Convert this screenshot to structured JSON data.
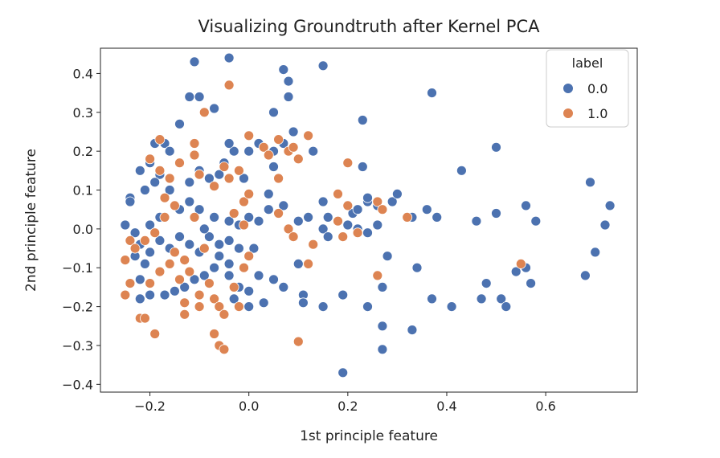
{
  "chart_data": {
    "type": "scatter",
    "title": "Visualizing Groundtruth after Kernel PCA",
    "xlabel": "1st principle feature",
    "ylabel": "2nd principle feature",
    "xlim": [
      -0.3,
      0.785
    ],
    "ylim": [
      -0.42,
      0.465
    ],
    "xticks": [
      -0.2,
      0.0,
      0.2,
      0.4,
      0.6
    ],
    "yticks": [
      -0.4,
      -0.3,
      -0.2,
      -0.1,
      0.0,
      0.1,
      0.2,
      0.3,
      0.4
    ],
    "xtick_labels": [
      "−0.2",
      "0.0",
      "0.2",
      "0.4",
      "0.6"
    ],
    "ytick_labels": [
      "−0.4",
      "−0.3",
      "−0.2",
      "−0.1",
      "0.0",
      "0.1",
      "0.2",
      "0.3",
      "0.4"
    ],
    "grid": false,
    "legend": {
      "title": "label",
      "position": "top-right"
    },
    "series": [
      {
        "name": "0.0",
        "color": "#4c72b0",
        "points": [
          [
            -0.11,
            0.43
          ],
          [
            -0.04,
            0.44
          ],
          [
            -0.1,
            0.34
          ],
          [
            -0.12,
            0.34
          ],
          [
            -0.07,
            0.31
          ],
          [
            -0.14,
            0.27
          ],
          [
            -0.09,
            0.3
          ],
          [
            -0.19,
            0.22
          ],
          [
            -0.17,
            0.22
          ],
          [
            -0.16,
            0.2
          ],
          [
            -0.2,
            0.17
          ],
          [
            -0.22,
            0.15
          ],
          [
            -0.18,
            0.14
          ],
          [
            -0.19,
            0.12
          ],
          [
            -0.21,
            0.1
          ],
          [
            -0.24,
            0.08
          ],
          [
            -0.24,
            0.07
          ],
          [
            -0.16,
            0.1
          ],
          [
            -0.12,
            0.12
          ],
          [
            -0.1,
            0.15
          ],
          [
            -0.05,
            0.17
          ],
          [
            -0.03,
            0.2
          ],
          [
            -0.04,
            0.22
          ],
          [
            -0.06,
            0.14
          ],
          [
            -0.08,
            0.13
          ],
          [
            -0.14,
            0.05
          ],
          [
            -0.12,
            0.07
          ],
          [
            -0.1,
            0.05
          ],
          [
            -0.18,
            0.03
          ],
          [
            -0.2,
            0.01
          ],
          [
            -0.25,
            0.01
          ],
          [
            -0.23,
            -0.01
          ],
          [
            -0.22,
            -0.04
          ],
          [
            -0.2,
            -0.06
          ],
          [
            -0.18,
            -0.03
          ],
          [
            -0.16,
            -0.05
          ],
          [
            -0.14,
            -0.02
          ],
          [
            -0.12,
            -0.04
          ],
          [
            -0.1,
            -0.06
          ],
          [
            -0.08,
            -0.02
          ],
          [
            -0.06,
            -0.04
          ],
          [
            -0.04,
            -0.03
          ],
          [
            -0.02,
            -0.05
          ],
          [
            -0.02,
            0.01
          ],
          [
            -0.04,
            0.02
          ],
          [
            -0.07,
            0.03
          ],
          [
            -0.09,
            0.0
          ],
          [
            -0.06,
            -0.07
          ],
          [
            -0.04,
            -0.09
          ],
          [
            -0.07,
            -0.1
          ],
          [
            -0.09,
            -0.12
          ],
          [
            -0.11,
            -0.13
          ],
          [
            -0.13,
            -0.15
          ],
          [
            -0.15,
            -0.16
          ],
          [
            -0.17,
            -0.17
          ],
          [
            -0.2,
            -0.17
          ],
          [
            -0.22,
            -0.18
          ],
          [
            -0.22,
            -0.13
          ],
          [
            -0.21,
            -0.09
          ],
          [
            -0.23,
            -0.07
          ],
          [
            -0.04,
            -0.12
          ],
          [
            -0.02,
            -0.15
          ],
          [
            -0.03,
            -0.18
          ],
          [
            0.0,
            -0.16
          ],
          [
            0.02,
            -0.12
          ],
          [
            0.05,
            -0.13
          ],
          [
            0.07,
            -0.15
          ],
          [
            0.03,
            -0.19
          ],
          [
            0.0,
            -0.2
          ],
          [
            0.01,
            -0.05
          ],
          [
            0.02,
            0.02
          ],
          [
            0.04,
            0.05
          ],
          [
            0.0,
            0.03
          ],
          [
            -0.01,
            0.13
          ],
          [
            0.0,
            0.2
          ],
          [
            0.02,
            0.22
          ],
          [
            0.05,
            0.2
          ],
          [
            0.07,
            0.22
          ],
          [
            0.05,
            0.16
          ],
          [
            0.04,
            0.09
          ],
          [
            0.07,
            0.06
          ],
          [
            0.05,
            0.3
          ],
          [
            0.07,
            0.41
          ],
          [
            0.08,
            0.38
          ],
          [
            0.08,
            0.34
          ],
          [
            0.09,
            0.25
          ],
          [
            0.13,
            0.2
          ],
          [
            0.15,
            0.42
          ],
          [
            0.1,
            0.02
          ],
          [
            0.12,
            0.03
          ],
          [
            0.15,
            0.07
          ],
          [
            0.16,
            0.03
          ],
          [
            0.15,
            0.0
          ],
          [
            0.16,
            -0.02
          ],
          [
            0.1,
            -0.09
          ],
          [
            0.11,
            -0.17
          ],
          [
            0.11,
            -0.19
          ],
          [
            0.15,
            -0.2
          ],
          [
            0.19,
            -0.37
          ],
          [
            0.19,
            -0.17
          ],
          [
            0.2,
            0.01
          ],
          [
            0.21,
            0.04
          ],
          [
            0.22,
            0.05
          ],
          [
            0.22,
            0.0
          ],
          [
            0.23,
            0.28
          ],
          [
            0.23,
            0.16
          ],
          [
            0.24,
            0.07
          ],
          [
            0.24,
            0.08
          ],
          [
            0.26,
            0.06
          ],
          [
            0.24,
            -0.01
          ],
          [
            0.26,
            0.01
          ],
          [
            0.24,
            -0.2
          ],
          [
            0.27,
            -0.25
          ],
          [
            0.27,
            -0.31
          ],
          [
            0.27,
            -0.15
          ],
          [
            0.28,
            -0.07
          ],
          [
            0.29,
            0.07
          ],
          [
            0.3,
            0.09
          ],
          [
            0.33,
            0.03
          ],
          [
            0.33,
            -0.26
          ],
          [
            0.34,
            -0.1
          ],
          [
            0.36,
            0.05
          ],
          [
            0.37,
            0.35
          ],
          [
            0.38,
            0.03
          ],
          [
            0.37,
            -0.18
          ],
          [
            0.41,
            -0.2
          ],
          [
            0.43,
            0.15
          ],
          [
            0.46,
            0.02
          ],
          [
            0.47,
            -0.18
          ],
          [
            0.48,
            -0.14
          ],
          [
            0.5,
            0.04
          ],
          [
            0.5,
            0.21
          ],
          [
            0.51,
            -0.18
          ],
          [
            0.52,
            -0.2
          ],
          [
            0.54,
            -0.11
          ],
          [
            0.56,
            0.06
          ],
          [
            0.56,
            -0.1
          ],
          [
            0.57,
            -0.14
          ],
          [
            0.58,
            0.02
          ],
          [
            0.68,
            -0.12
          ],
          [
            0.69,
            0.12
          ],
          [
            0.7,
            -0.06
          ],
          [
            0.72,
            0.01
          ],
          [
            0.73,
            0.06
          ]
        ]
      },
      {
        "name": "1.0",
        "color": "#dd8452",
        "points": [
          [
            -0.04,
            0.37
          ],
          [
            -0.09,
            0.3
          ],
          [
            -0.18,
            0.23
          ],
          [
            -0.2,
            0.18
          ],
          [
            -0.18,
            0.15
          ],
          [
            -0.16,
            0.13
          ],
          [
            -0.14,
            0.17
          ],
          [
            -0.11,
            0.22
          ],
          [
            -0.11,
            0.19
          ],
          [
            -0.1,
            0.14
          ],
          [
            -0.07,
            0.11
          ],
          [
            -0.05,
            0.16
          ],
          [
            -0.04,
            0.13
          ],
          [
            -0.02,
            0.15
          ],
          [
            -0.17,
            0.08
          ],
          [
            -0.15,
            0.06
          ],
          [
            -0.17,
            0.03
          ],
          [
            -0.19,
            -0.01
          ],
          [
            -0.21,
            -0.03
          ],
          [
            -0.24,
            -0.03
          ],
          [
            -0.23,
            -0.05
          ],
          [
            -0.25,
            -0.08
          ],
          [
            -0.24,
            -0.14
          ],
          [
            -0.25,
            -0.17
          ],
          [
            -0.22,
            -0.23
          ],
          [
            -0.21,
            -0.23
          ],
          [
            -0.19,
            -0.27
          ],
          [
            -0.2,
            -0.14
          ],
          [
            -0.18,
            -0.11
          ],
          [
            -0.16,
            -0.09
          ],
          [
            -0.15,
            -0.06
          ],
          [
            -0.13,
            -0.08
          ],
          [
            -0.12,
            -0.11
          ],
          [
            -0.14,
            -0.13
          ],
          [
            -0.13,
            -0.19
          ],
          [
            -0.13,
            -0.22
          ],
          [
            -0.1,
            -0.17
          ],
          [
            -0.1,
            -0.2
          ],
          [
            -0.08,
            -0.14
          ],
          [
            -0.07,
            -0.18
          ],
          [
            -0.06,
            -0.2
          ],
          [
            -0.07,
            -0.27
          ],
          [
            -0.06,
            -0.3
          ],
          [
            -0.05,
            -0.31
          ],
          [
            -0.05,
            -0.22
          ],
          [
            -0.03,
            -0.15
          ],
          [
            -0.02,
            -0.2
          ],
          [
            -0.01,
            -0.1
          ],
          [
            0.0,
            -0.07
          ],
          [
            -0.01,
            0.01
          ],
          [
            -0.03,
            0.04
          ],
          [
            -0.01,
            0.07
          ],
          [
            0.0,
            0.09
          ],
          [
            -0.11,
            0.03
          ],
          [
            -0.09,
            -0.05
          ],
          [
            0.0,
            0.24
          ],
          [
            0.03,
            0.21
          ],
          [
            0.04,
            0.19
          ],
          [
            0.06,
            0.23
          ],
          [
            0.06,
            0.13
          ],
          [
            0.08,
            0.2
          ],
          [
            0.09,
            0.21
          ],
          [
            0.1,
            0.18
          ],
          [
            0.12,
            0.24
          ],
          [
            0.06,
            0.04
          ],
          [
            0.08,
            0.0
          ],
          [
            0.09,
            -0.02
          ],
          [
            0.13,
            -0.04
          ],
          [
            0.12,
            -0.09
          ],
          [
            0.1,
            -0.29
          ],
          [
            0.18,
            0.09
          ],
          [
            0.2,
            0.06
          ],
          [
            0.2,
            0.17
          ],
          [
            0.18,
            0.02
          ],
          [
            0.19,
            -0.02
          ],
          [
            0.22,
            -0.01
          ],
          [
            0.26,
            0.07
          ],
          [
            0.27,
            0.05
          ],
          [
            0.26,
            -0.12
          ],
          [
            0.32,
            0.03
          ],
          [
            0.55,
            -0.09
          ]
        ]
      }
    ]
  }
}
